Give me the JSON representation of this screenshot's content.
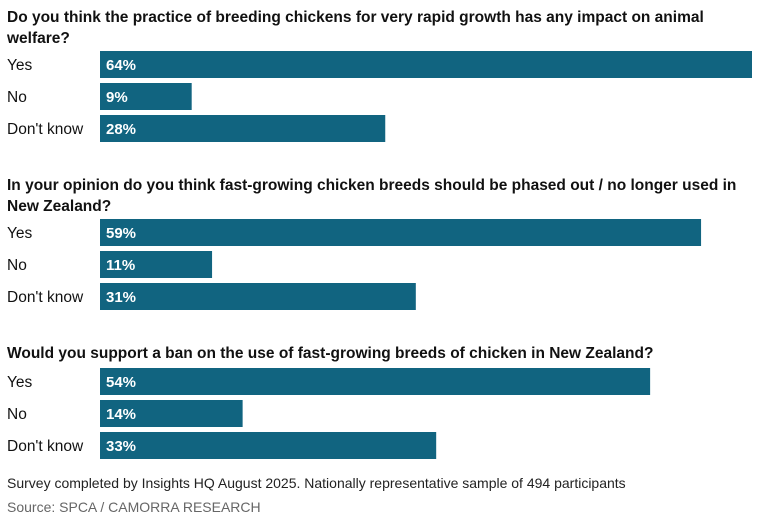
{
  "chart_data": {
    "type": "bar",
    "orientation": "horizontal",
    "bar_color": "#116480",
    "xlim": [
      0,
      64
    ],
    "grid": false,
    "legend": "none",
    "panels": [
      {
        "title": "Do you think the practice of breeding chickens for very rapid growth has any impact on animal welfare?",
        "categories": [
          "Yes",
          "No",
          "Don't know"
        ],
        "values": [
          64,
          9,
          28
        ],
        "labels": [
          "64%",
          "9%",
          "28%"
        ]
      },
      {
        "title": "In your opinion do you think fast-growing chicken breeds should be phased out / no longer used in New Zealand?",
        "categories": [
          "Yes",
          "No",
          "Don't know"
        ],
        "values": [
          59,
          11,
          31
        ],
        "labels": [
          "59%",
          "11%",
          "31%"
        ]
      },
      {
        "title": "Would you support a ban on the use of fast-growing breeds of chicken in New Zealand?",
        "categories": [
          "Yes",
          "No",
          "Don't know"
        ],
        "values": [
          54,
          14,
          33
        ],
        "labels": [
          "54%",
          "14%",
          "33%"
        ]
      }
    ]
  },
  "footer": {
    "note": "Survey completed by Insights HQ August 2025. Nationally representative sample of 494 participants",
    "source": "Source: SPCA / CAMORRA RESEARCH"
  }
}
